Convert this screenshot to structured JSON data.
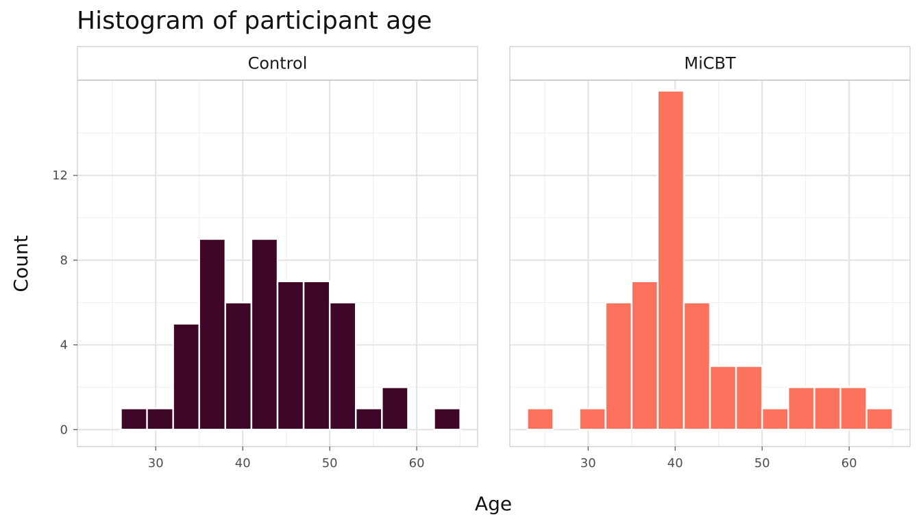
{
  "chart_data": {
    "type": "bar",
    "subtype": "faceted-histogram",
    "title": "Histogram of participant age",
    "xlabel": "Age",
    "ylabel": "Count",
    "xlim": [
      21,
      67
    ],
    "ylim": [
      -0.8,
      16.5
    ],
    "x_ticks": [
      30,
      40,
      50,
      60
    ],
    "y_ticks": [
      0,
      4,
      8,
      12
    ],
    "grid": true,
    "legend": "none",
    "bin_width": 3,
    "panels": [
      {
        "name": "Control",
        "color": "#3f0727",
        "bins": [
          {
            "start": 23,
            "end": 26,
            "count": 0
          },
          {
            "start": 26,
            "end": 29,
            "count": 1
          },
          {
            "start": 29,
            "end": 32,
            "count": 1
          },
          {
            "start": 32,
            "end": 35,
            "count": 5
          },
          {
            "start": 35,
            "end": 38,
            "count": 9
          },
          {
            "start": 38,
            "end": 41,
            "count": 6
          },
          {
            "start": 41,
            "end": 44,
            "count": 9
          },
          {
            "start": 44,
            "end": 47,
            "count": 7
          },
          {
            "start": 47,
            "end": 50,
            "count": 7
          },
          {
            "start": 50,
            "end": 53,
            "count": 6
          },
          {
            "start": 53,
            "end": 56,
            "count": 1
          },
          {
            "start": 56,
            "end": 59,
            "count": 2
          },
          {
            "start": 59,
            "end": 62,
            "count": 0
          },
          {
            "start": 62,
            "end": 65,
            "count": 1
          }
        ]
      },
      {
        "name": "MiCBT",
        "color": "#fc725c",
        "bins": [
          {
            "start": 23,
            "end": 26,
            "count": 1
          },
          {
            "start": 26,
            "end": 29,
            "count": 0
          },
          {
            "start": 29,
            "end": 32,
            "count": 1
          },
          {
            "start": 32,
            "end": 35,
            "count": 6
          },
          {
            "start": 35,
            "end": 38,
            "count": 7
          },
          {
            "start": 38,
            "end": 41,
            "count": 16
          },
          {
            "start": 41,
            "end": 44,
            "count": 6
          },
          {
            "start": 44,
            "end": 47,
            "count": 3
          },
          {
            "start": 47,
            "end": 50,
            "count": 3
          },
          {
            "start": 50,
            "end": 53,
            "count": 1
          },
          {
            "start": 53,
            "end": 56,
            "count": 2
          },
          {
            "start": 56,
            "end": 59,
            "count": 2
          },
          {
            "start": 59,
            "end": 62,
            "count": 2
          },
          {
            "start": 62,
            "end": 65,
            "count": 1
          }
        ]
      }
    ]
  }
}
